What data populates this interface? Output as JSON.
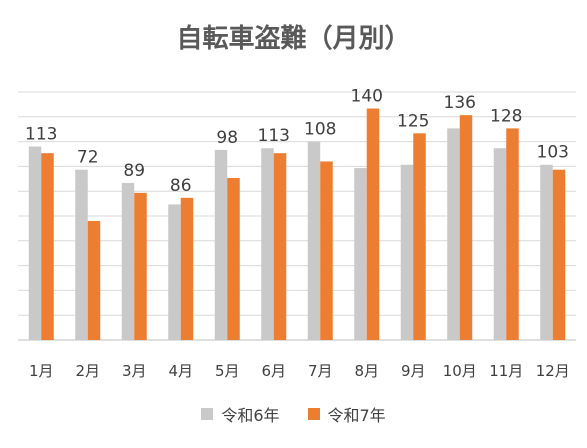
{
  "chart_data": {
    "type": "bar",
    "title": "自転車盗難（月別）",
    "categories": [
      "1月",
      "2月",
      "3月",
      "4月",
      "5月",
      "6月",
      "7月",
      "8月",
      "9月",
      "10月",
      "11月",
      "12月"
    ],
    "series": [
      {
        "name": "令和6年",
        "color": "#c9c9c9",
        "values": [
          117,
          103,
          95,
          82,
          115,
          116,
          120,
          104,
          106,
          128,
          116,
          106
        ]
      },
      {
        "name": "令和7年",
        "color": "#ed7d31",
        "values": [
          113,
          72,
          89,
          86,
          98,
          113,
          108,
          140,
          125,
          136,
          128,
          103
        ]
      }
    ],
    "data_labels_series": "令和7年",
    "ylim": [
      0,
      150
    ],
    "grid": true,
    "legend_position": "bottom",
    "xlabel": "",
    "ylabel": ""
  }
}
